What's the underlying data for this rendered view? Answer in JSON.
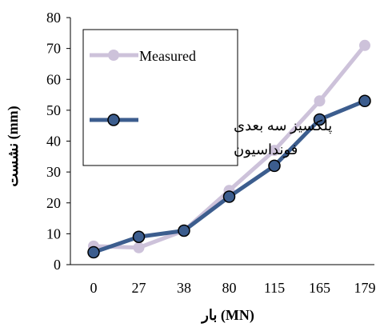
{
  "chart_data": {
    "type": "line",
    "title": "",
    "categories": [
      "0",
      "27",
      "38",
      "80",
      "115",
      "165",
      "179"
    ],
    "xlabel": "بار (MN)",
    "ylabel": "نشست (mm)",
    "ylim": [
      0,
      80
    ],
    "yticks": [
      "0",
      "10",
      "20",
      "30",
      "40",
      "50",
      "60",
      "70",
      "80"
    ],
    "grid": false,
    "legend_position": "upper-left",
    "series": [
      {
        "name": "Measured",
        "color": "#cdc2da",
        "values": [
          6,
          5.5,
          11,
          24,
          37,
          53,
          71
        ]
      },
      {
        "name": "پلکسیز سه بعدی فونداسیون",
        "name_line1": "پلکسیز سه بعدی",
        "name_line2": "فونداسیون",
        "color": "#3c5d8e",
        "values": [
          4,
          9,
          11,
          22,
          32,
          47,
          53
        ]
      }
    ]
  }
}
